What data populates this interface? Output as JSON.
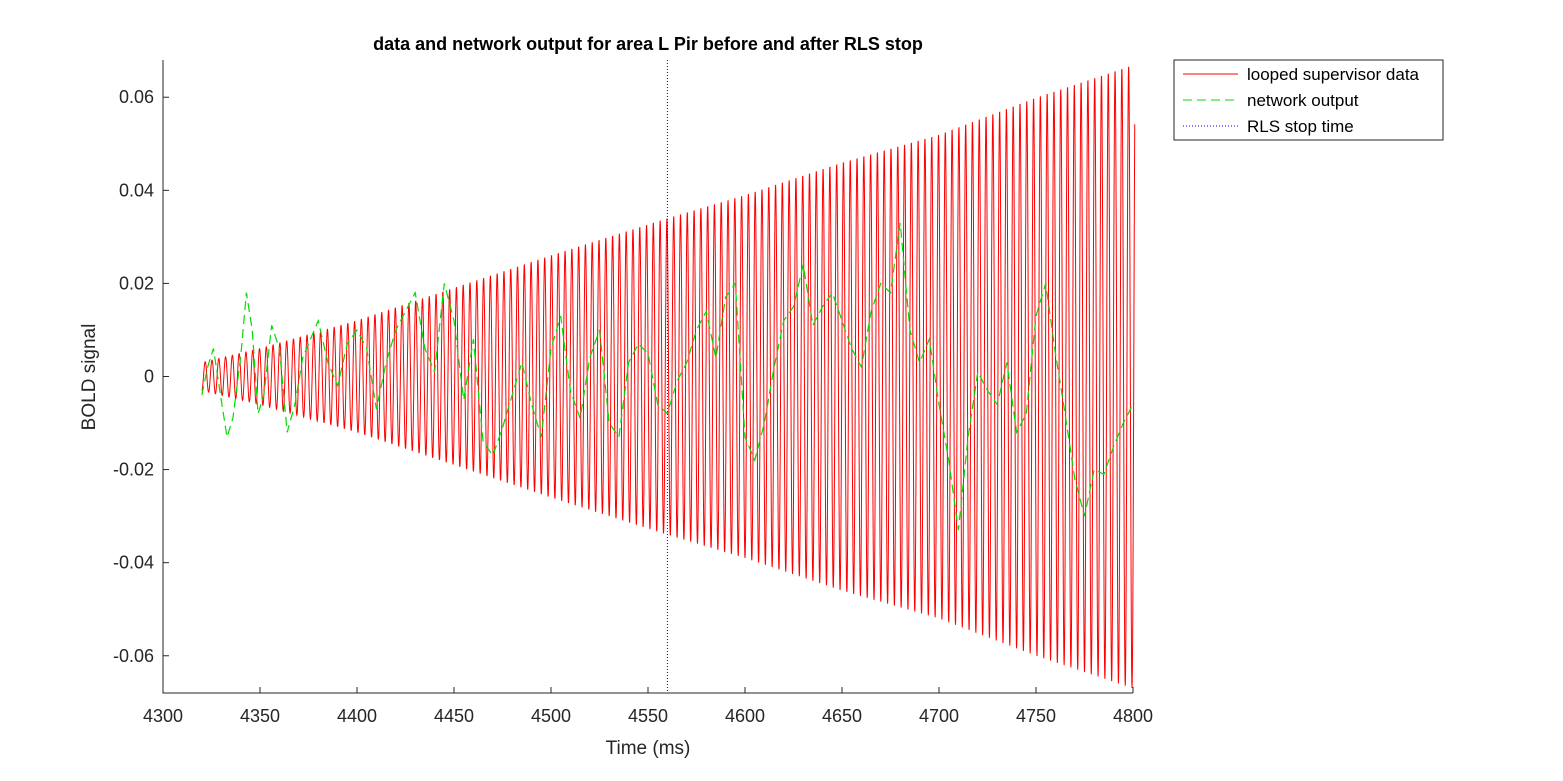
{
  "chart_data": {
    "type": "line",
    "title": "data and network output for area L Pir before and after RLS stop",
    "xlabel": "Time (ms)",
    "ylabel": "BOLD signal",
    "xlim": [
      4300,
      4800
    ],
    "ylim": [
      -0.068,
      0.068
    ],
    "xticks": [
      4300,
      4350,
      4400,
      4450,
      4500,
      4550,
      4600,
      4650,
      4700,
      4750,
      4800
    ],
    "xtick_labels": [
      "4300",
      "4350",
      "4400",
      "4450",
      "4500",
      "4550",
      "4600",
      "4650",
      "4700",
      "4750",
      "4800"
    ],
    "yticks": [
      0.06,
      0.04,
      0.02,
      0,
      -0.02,
      -0.04,
      -0.06
    ],
    "ytick_labels": [
      "0.06",
      "0.04",
      "0.02",
      "0",
      "-0.02",
      "-0.04",
      "-0.06"
    ],
    "grid": false,
    "legend_position": "outside-top-right",
    "series": [
      {
        "name": "looped supervisor data",
        "color": "#ff0000",
        "style": "solid",
        "x_start": 4320,
        "x_end": 4801,
        "oscillation_period_ms": 3.5,
        "envelope_x": [
          4320,
          4350,
          4400,
          4450,
          4500,
          4560,
          4600,
          4650,
          4700,
          4750,
          4800
        ],
        "envelope_amplitude": [
          0.003,
          0.006,
          0.012,
          0.019,
          0.026,
          0.034,
          0.039,
          0.046,
          0.052,
          0.06,
          0.067
        ]
      },
      {
        "name": "network output",
        "color": "#00dd00",
        "style": "dashed",
        "x": [
          4320,
          4323,
          4326,
          4330,
          4333,
          4336,
          4340,
          4343,
          4346,
          4349,
          4352,
          4356,
          4360,
          4364,
          4368,
          4372,
          4376,
          4380,
          4385,
          4390,
          4395,
          4400,
          4405,
          4410,
          4415,
          4420,
          4425,
          4430,
          4435,
          4440,
          4445,
          4450,
          4455,
          4460,
          4465,
          4470,
          4475,
          4480,
          4485,
          4490,
          4495,
          4500,
          4505,
          4510,
          4515,
          4520,
          4525,
          4530,
          4535,
          4540,
          4545,
          4550,
          4555,
          4560,
          4565,
          4570,
          4575,
          4580,
          4585,
          4590,
          4595,
          4600,
          4605,
          4610,
          4615,
          4620,
          4625,
          4630,
          4635,
          4640,
          4645,
          4650,
          4655,
          4660,
          4665,
          4670,
          4675,
          4680,
          4685,
          4690,
          4695,
          4700,
          4705,
          4710,
          4715,
          4720,
          4725,
          4730,
          4735,
          4740,
          4745,
          4750,
          4755,
          4760,
          4765,
          4770,
          4775,
          4780,
          4785,
          4790,
          4795,
          4800
        ],
        "y": [
          -0.004,
          0.002,
          0.006,
          -0.005,
          -0.013,
          -0.009,
          0.004,
          0.018,
          0.01,
          -0.008,
          -0.004,
          0.011,
          0.006,
          -0.012,
          -0.006,
          0.004,
          0.008,
          0.012,
          0.003,
          -0.002,
          0.007,
          0.01,
          0.006,
          -0.007,
          0.003,
          0.01,
          0.014,
          0.018,
          0.006,
          0.001,
          0.02,
          0.012,
          -0.005,
          0.008,
          -0.014,
          -0.017,
          -0.011,
          -0.004,
          0.003,
          -0.006,
          -0.013,
          0.006,
          0.013,
          -0.003,
          -0.009,
          0.004,
          0.01,
          -0.01,
          -0.013,
          0.003,
          0.007,
          0.005,
          -0.006,
          -0.008,
          -0.001,
          0.003,
          0.01,
          0.014,
          0.004,
          0.017,
          0.02,
          -0.013,
          -0.018,
          -0.01,
          0.002,
          0.012,
          0.015,
          0.024,
          0.011,
          0.015,
          0.018,
          0.012,
          0.006,
          0.002,
          0.014,
          0.02,
          0.018,
          0.033,
          0.01,
          0.003,
          0.008,
          -0.006,
          -0.018,
          -0.033,
          -0.013,
          0.001,
          -0.003,
          -0.006,
          0.003,
          -0.012,
          -0.008,
          0.013,
          0.02,
          0.005,
          -0.008,
          -0.022,
          -0.03,
          -0.02,
          -0.021,
          -0.015,
          -0.01,
          -0.006
        ]
      },
      {
        "name": "RLS stop time",
        "color": "#0000ff",
        "style": "dotted",
        "x": [
          4560,
          4560
        ],
        "y": [
          -0.068,
          0.068
        ]
      }
    ]
  }
}
